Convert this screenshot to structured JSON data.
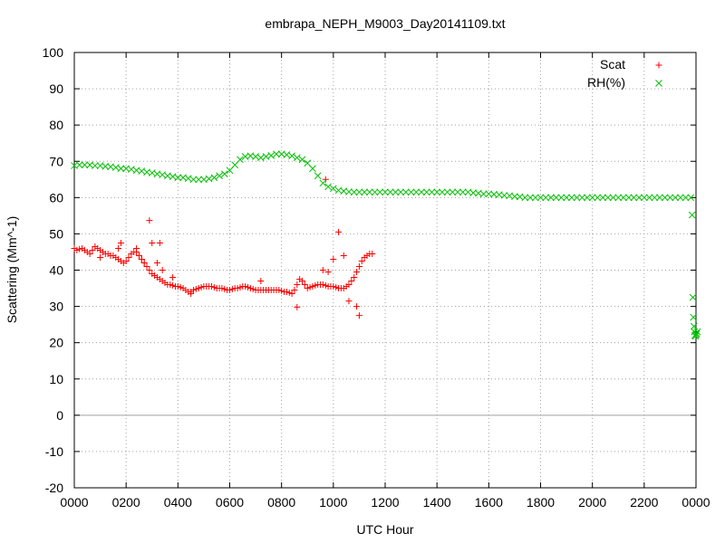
{
  "colors": {
    "scat": "#ff0000",
    "rh": "#00c000",
    "grid": "#a0a0a0"
  },
  "chart_data": {
    "type": "scatter",
    "title": "embrapa_NEPH_M9003_Day20141109.txt",
    "xlabel": "UTC Hour",
    "ylabel": "Scattering (Mm^-1)",
    "xlim": [
      0,
      24
    ],
    "ylim": [
      -20,
      100
    ],
    "grid": true,
    "legend_position": "top-right",
    "xticks": [
      {
        "v": 0,
        "label": "0000"
      },
      {
        "v": 2,
        "label": "0200"
      },
      {
        "v": 4,
        "label": "0400"
      },
      {
        "v": 6,
        "label": "0600"
      },
      {
        "v": 8,
        "label": "0800"
      },
      {
        "v": 10,
        "label": "1000"
      },
      {
        "v": 12,
        "label": "1200"
      },
      {
        "v": 14,
        "label": "1400"
      },
      {
        "v": 16,
        "label": "1600"
      },
      {
        "v": 18,
        "label": "1800"
      },
      {
        "v": 20,
        "label": "2000"
      },
      {
        "v": 22,
        "label": "2200"
      },
      {
        "v": 24,
        "label": "0000"
      }
    ],
    "yticks": [
      -20,
      -10,
      0,
      10,
      20,
      30,
      40,
      50,
      60,
      70,
      80,
      90,
      100
    ],
    "series": [
      {
        "name": "Scat",
        "marker": "plus",
        "color": "#ff0000",
        "points": [
          [
            0.0,
            46
          ],
          [
            0.1,
            45.5
          ],
          [
            0.2,
            45.8
          ],
          [
            0.3,
            46
          ],
          [
            0.4,
            45.5
          ],
          [
            0.5,
            45
          ],
          [
            0.6,
            44.5
          ],
          [
            0.7,
            45.5
          ],
          [
            0.8,
            46.5
          ],
          [
            0.9,
            46
          ],
          [
            1.0,
            45.5
          ],
          [
            1.1,
            45
          ],
          [
            1.2,
            44.5
          ],
          [
            1.3,
            44.5
          ],
          [
            1.4,
            44
          ],
          [
            1.5,
            44
          ],
          [
            1.6,
            43.5
          ],
          [
            1.7,
            43
          ],
          [
            1.8,
            42.5
          ],
          [
            1.9,
            42
          ],
          [
            2.0,
            42.5
          ],
          [
            2.1,
            43.5
          ],
          [
            2.2,
            44.5
          ],
          [
            2.3,
            45
          ],
          [
            2.4,
            45
          ],
          [
            2.5,
            44
          ],
          [
            2.6,
            43
          ],
          [
            2.7,
            42
          ],
          [
            2.8,
            41
          ],
          [
            2.9,
            40
          ],
          [
            3.0,
            39
          ],
          [
            3.1,
            38.5
          ],
          [
            3.2,
            38
          ],
          [
            3.3,
            37.5
          ],
          [
            3.4,
            37
          ],
          [
            3.5,
            36.5
          ],
          [
            3.6,
            36
          ],
          [
            3.7,
            36
          ],
          [
            3.8,
            35.8
          ],
          [
            3.9,
            35.5
          ],
          [
            4.0,
            35.5
          ],
          [
            4.1,
            35.3
          ],
          [
            4.2,
            35
          ],
          [
            4.3,
            34.5
          ],
          [
            4.4,
            34
          ],
          [
            4.5,
            34
          ],
          [
            4.6,
            34.5
          ],
          [
            4.7,
            34.8
          ],
          [
            4.8,
            35
          ],
          [
            4.9,
            35.3
          ],
          [
            5.0,
            35.5
          ],
          [
            5.1,
            35.5
          ],
          [
            5.2,
            35.5
          ],
          [
            5.3,
            35.5
          ],
          [
            5.4,
            35.3
          ],
          [
            5.5,
            35
          ],
          [
            5.6,
            35
          ],
          [
            5.7,
            35
          ],
          [
            5.8,
            34.8
          ],
          [
            5.9,
            34.5
          ],
          [
            6.0,
            34.5
          ],
          [
            6.1,
            34.8
          ],
          [
            6.2,
            35
          ],
          [
            6.3,
            35
          ],
          [
            6.4,
            35.2
          ],
          [
            6.5,
            35.5
          ],
          [
            6.6,
            35.5
          ],
          [
            6.7,
            35.3
          ],
          [
            6.8,
            35
          ],
          [
            6.9,
            34.8
          ],
          [
            7.0,
            34.5
          ],
          [
            7.1,
            34.5
          ],
          [
            7.2,
            34.5
          ],
          [
            7.3,
            34.5
          ],
          [
            7.4,
            34.5
          ],
          [
            7.5,
            34.5
          ],
          [
            7.6,
            34.5
          ],
          [
            7.7,
            34.5
          ],
          [
            7.8,
            34.5
          ],
          [
            7.9,
            34.5
          ],
          [
            8.0,
            34.3
          ],
          [
            8.1,
            34
          ],
          [
            8.2,
            34
          ],
          [
            8.3,
            33.8
          ],
          [
            8.4,
            33.5
          ],
          [
            8.5,
            34.5
          ],
          [
            8.6,
            36
          ],
          [
            8.7,
            37.5
          ],
          [
            8.8,
            37
          ],
          [
            8.9,
            36
          ],
          [
            9.0,
            35
          ],
          [
            9.1,
            35.3
          ],
          [
            9.2,
            35.5
          ],
          [
            9.3,
            35.8
          ],
          [
            9.4,
            36
          ],
          [
            9.5,
            36
          ],
          [
            9.6,
            36
          ],
          [
            9.7,
            35.8
          ],
          [
            9.8,
            35.5
          ],
          [
            9.9,
            35.5
          ],
          [
            10.0,
            35.5
          ],
          [
            10.1,
            35.3
          ],
          [
            10.2,
            35
          ],
          [
            10.3,
            35
          ],
          [
            10.4,
            35
          ],
          [
            10.5,
            35.5
          ],
          [
            10.6,
            36
          ],
          [
            10.7,
            37
          ],
          [
            10.8,
            38
          ],
          [
            10.9,
            39.5
          ],
          [
            11.0,
            41
          ],
          [
            11.1,
            42.5
          ],
          [
            11.2,
            43.5
          ],
          [
            11.3,
            44
          ],
          [
            11.4,
            44.5
          ],
          [
            11.5,
            44.5
          ],
          [
            1.0,
            43.5
          ],
          [
            1.7,
            46
          ],
          [
            1.8,
            47.5
          ],
          [
            2.4,
            46
          ],
          [
            2.6,
            43
          ],
          [
            2.7,
            42
          ],
          [
            2.9,
            53.7
          ],
          [
            3.0,
            47.5
          ],
          [
            3.2,
            42
          ],
          [
            3.3,
            47.5
          ],
          [
            3.4,
            40
          ],
          [
            3.8,
            38
          ],
          [
            4.5,
            33.5
          ],
          [
            7.2,
            37
          ],
          [
            8.6,
            29.8
          ],
          [
            9.6,
            40
          ],
          [
            9.7,
            65
          ],
          [
            9.8,
            39.5
          ],
          [
            10.0,
            43
          ],
          [
            10.2,
            50.5
          ],
          [
            10.4,
            44
          ],
          [
            10.6,
            31.5
          ],
          [
            10.9,
            30
          ],
          [
            11.0,
            27.5
          ]
        ]
      },
      {
        "name": "RH(%)",
        "marker": "cross",
        "color": "#00c000",
        "points": [
          [
            0.0,
            68.8
          ],
          [
            0.2,
            69
          ],
          [
            0.4,
            69
          ],
          [
            0.6,
            69
          ],
          [
            0.8,
            68.8
          ],
          [
            1.0,
            68.8
          ],
          [
            1.2,
            68.6
          ],
          [
            1.4,
            68.5
          ],
          [
            1.6,
            68.3
          ],
          [
            1.8,
            68
          ],
          [
            2.0,
            68
          ],
          [
            2.2,
            67.8
          ],
          [
            2.4,
            67.5
          ],
          [
            2.6,
            67.3
          ],
          [
            2.8,
            67
          ],
          [
            3.0,
            66.8
          ],
          [
            3.2,
            66.5
          ],
          [
            3.4,
            66.3
          ],
          [
            3.6,
            66
          ],
          [
            3.8,
            65.8
          ],
          [
            4.0,
            65.5
          ],
          [
            4.2,
            65.5
          ],
          [
            4.4,
            65.3
          ],
          [
            4.6,
            65
          ],
          [
            4.8,
            65
          ],
          [
            5.0,
            65
          ],
          [
            5.2,
            65.2
          ],
          [
            5.4,
            65.5
          ],
          [
            5.6,
            66
          ],
          [
            5.8,
            66.5
          ],
          [
            6.0,
            67.5
          ],
          [
            6.2,
            69
          ],
          [
            6.4,
            70.5
          ],
          [
            6.6,
            71.3
          ],
          [
            6.8,
            71.5
          ],
          [
            7.0,
            71.3
          ],
          [
            7.2,
            71
          ],
          [
            7.4,
            71.3
          ],
          [
            7.6,
            71.6
          ],
          [
            7.8,
            72
          ],
          [
            8.0,
            72
          ],
          [
            8.2,
            71.8
          ],
          [
            8.4,
            71.5
          ],
          [
            8.6,
            71
          ],
          [
            8.8,
            70.5
          ],
          [
            9.0,
            69.5
          ],
          [
            9.2,
            68
          ],
          [
            9.4,
            66
          ],
          [
            9.6,
            64
          ],
          [
            9.8,
            63
          ],
          [
            10.0,
            62.5
          ],
          [
            10.2,
            62
          ],
          [
            10.4,
            61.8
          ],
          [
            10.6,
            61.6
          ],
          [
            10.8,
            61.5
          ],
          [
            11.0,
            61.5
          ],
          [
            11.2,
            61.5
          ],
          [
            11.4,
            61.5
          ],
          [
            11.6,
            61.5
          ],
          [
            11.8,
            61.5
          ],
          [
            12.0,
            61.5
          ],
          [
            12.2,
            61.5
          ],
          [
            12.4,
            61.5
          ],
          [
            12.6,
            61.5
          ],
          [
            12.8,
            61.5
          ],
          [
            13.0,
            61.5
          ],
          [
            13.2,
            61.5
          ],
          [
            13.4,
            61.5
          ],
          [
            13.6,
            61.5
          ],
          [
            13.8,
            61.5
          ],
          [
            14.0,
            61.5
          ],
          [
            14.2,
            61.5
          ],
          [
            14.4,
            61.5
          ],
          [
            14.6,
            61.5
          ],
          [
            14.8,
            61.5
          ],
          [
            15.0,
            61.5
          ],
          [
            15.2,
            61.5
          ],
          [
            15.4,
            61.3
          ],
          [
            15.6,
            61.2
          ],
          [
            15.8,
            61
          ],
          [
            16.0,
            61
          ],
          [
            16.2,
            60.9
          ],
          [
            16.4,
            60.8
          ],
          [
            16.6,
            60.6
          ],
          [
            16.8,
            60.5
          ],
          [
            17.0,
            60.3
          ],
          [
            17.2,
            60.2
          ],
          [
            17.4,
            60
          ],
          [
            17.6,
            60
          ],
          [
            17.8,
            60
          ],
          [
            18.0,
            60
          ],
          [
            18.2,
            60
          ],
          [
            18.4,
            60
          ],
          [
            18.6,
            60
          ],
          [
            18.8,
            60
          ],
          [
            19.0,
            60
          ],
          [
            19.2,
            60
          ],
          [
            19.4,
            60
          ],
          [
            19.6,
            60
          ],
          [
            19.8,
            60
          ],
          [
            20.0,
            60
          ],
          [
            20.2,
            60
          ],
          [
            20.4,
            60
          ],
          [
            20.6,
            60
          ],
          [
            20.8,
            60
          ],
          [
            21.0,
            60
          ],
          [
            21.2,
            60
          ],
          [
            21.4,
            60
          ],
          [
            21.6,
            60
          ],
          [
            21.8,
            60
          ],
          [
            22.0,
            60
          ],
          [
            22.2,
            60
          ],
          [
            22.4,
            60
          ],
          [
            22.6,
            60
          ],
          [
            22.8,
            60
          ],
          [
            23.0,
            60
          ],
          [
            23.2,
            60
          ],
          [
            23.4,
            60
          ],
          [
            23.6,
            60
          ],
          [
            23.8,
            60
          ],
          [
            23.85,
            55.2
          ],
          [
            23.88,
            32.5
          ],
          [
            23.9,
            27
          ],
          [
            23.92,
            24.5
          ],
          [
            23.94,
            23
          ],
          [
            23.96,
            22
          ],
          [
            23.98,
            21.8
          ],
          [
            24.0,
            22.2
          ],
          [
            24.02,
            22.5
          ],
          [
            24.05,
            23
          ]
        ]
      }
    ]
  }
}
